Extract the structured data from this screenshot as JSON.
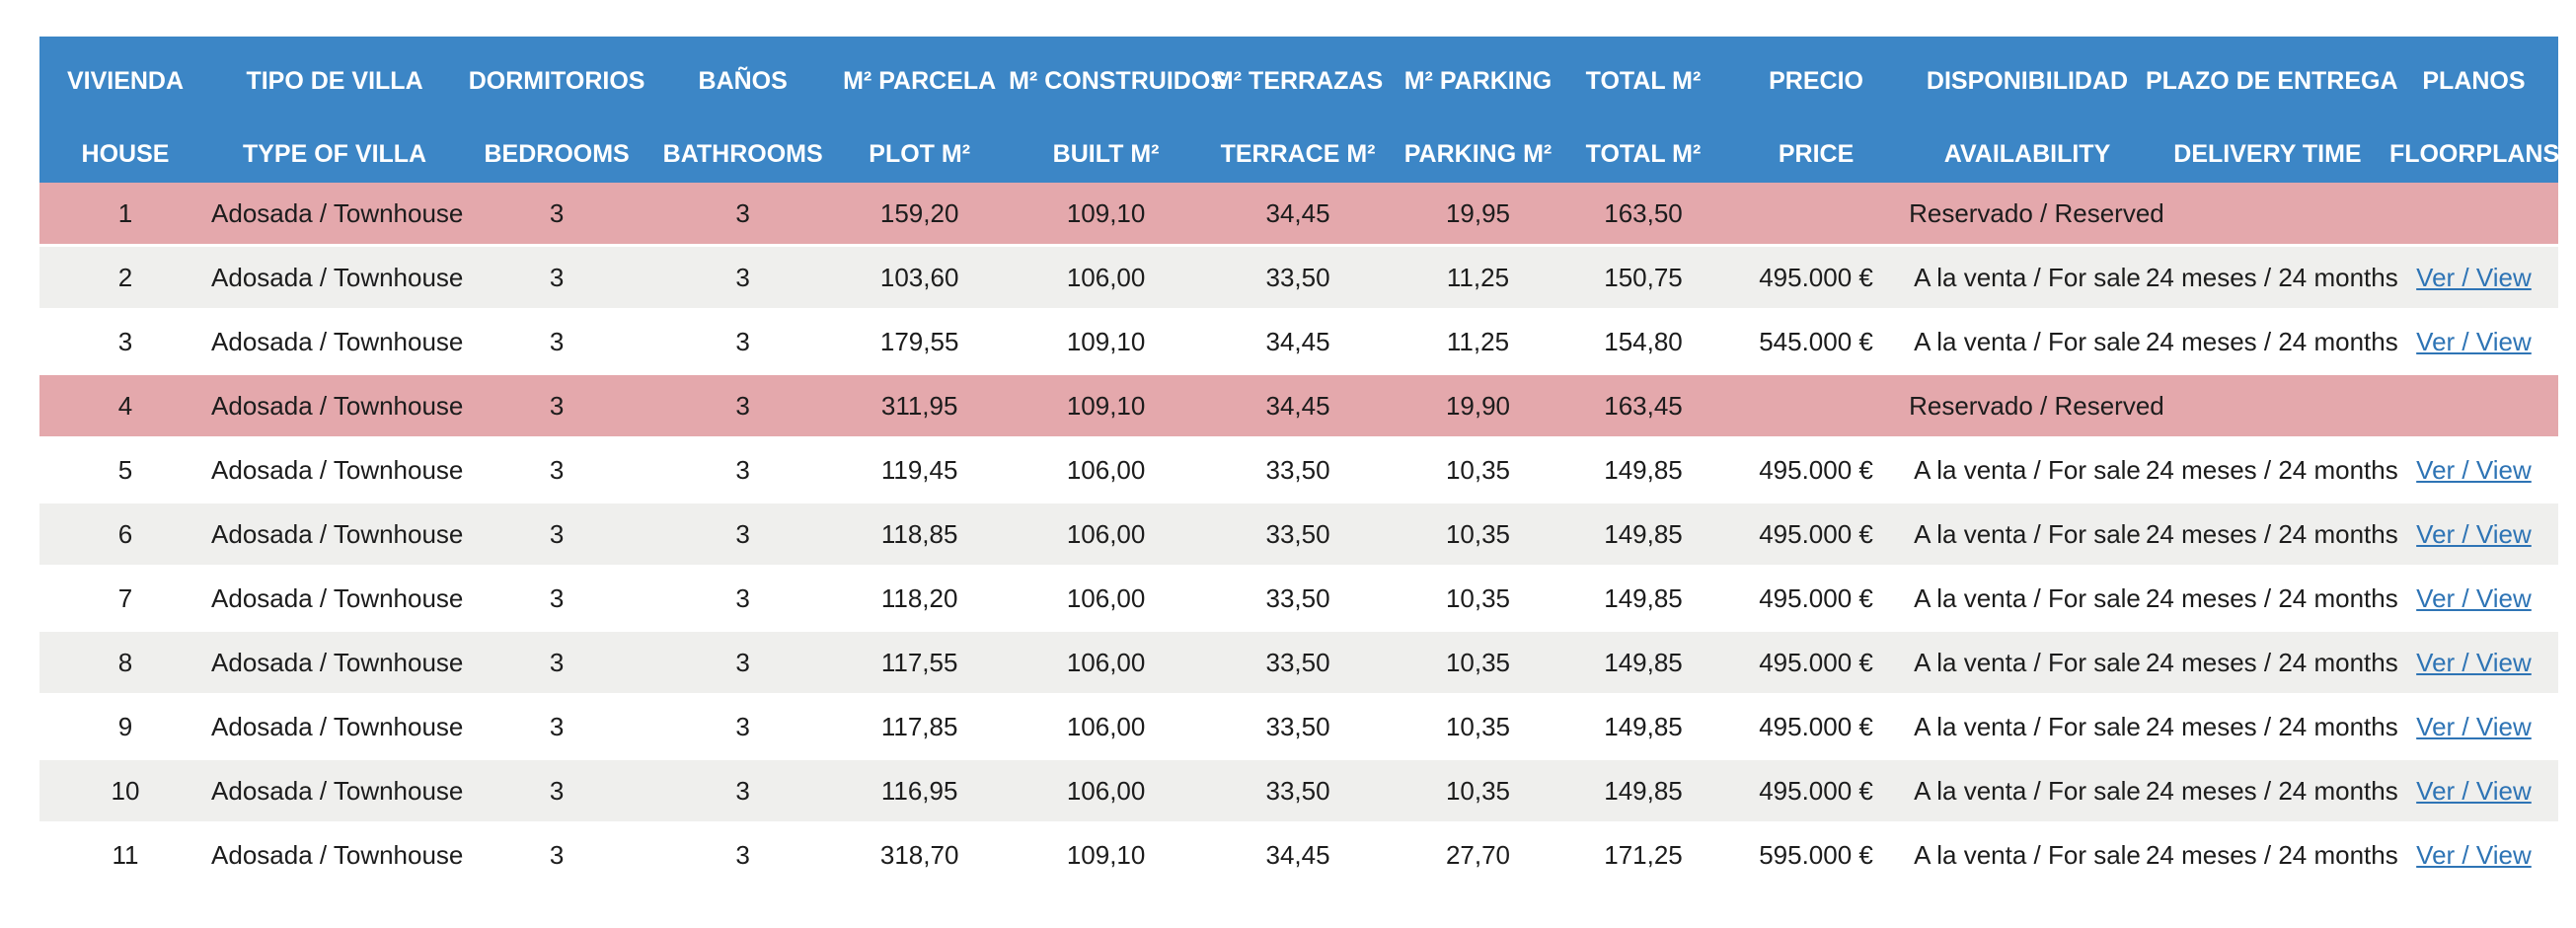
{
  "colors": {
    "header_bg": "#3C86C6",
    "header_text": "#FFFFFF",
    "reserved_bg": "#E4A8AC",
    "stripe_bg": "#EFEFED",
    "row_bg": "#FFFFFF",
    "body_text": "#1C1C1C",
    "link_color": "#2E74B5"
  },
  "table": {
    "header_es": [
      "VIVIENDA",
      "TIPO DE VILLA",
      "DORMITORIOS",
      "BAÑOS",
      "M² PARCELA",
      "M² CONSTRUIDOS",
      "M² TERRAZAS",
      "M² PARKING",
      "TOTAL M²",
      "PRECIO",
      "DISPONIBILIDAD",
      "PLAZO DE ENTREGA",
      "PLANOS"
    ],
    "header_en": [
      "HOUSE",
      "TYPE OF VILLA",
      "BEDROOMS",
      "BATHROOMS",
      "PLOT M²",
      "BUILT M²",
      "TERRACE M²",
      "PARKING M²",
      "TOTAL M²",
      "PRICE",
      "AVAILABILITY",
      "DELIVERY TIME",
      "FLOORPLANS"
    ],
    "rows": [
      {
        "house": "1",
        "type": "Adosada / Townhouse",
        "bedrooms": "3",
        "bathrooms": "3",
        "plot": "159,20",
        "built": "109,10",
        "terrace": "34,45",
        "parking": "19,95",
        "total": "163,50",
        "price": "",
        "availability": "Reservado / Reserved",
        "delivery": "",
        "floorplans": "",
        "shade": "reserved"
      },
      {
        "house": "2",
        "type": "Adosada / Townhouse",
        "bedrooms": "3",
        "bathrooms": "3",
        "plot": "103,60",
        "built": "106,00",
        "terrace": "33,50",
        "parking": "11,25",
        "total": "150,75",
        "price": "495.000 €",
        "availability": "A la venta / For sale",
        "delivery": "24 meses / 24 months",
        "floorplans": "Ver / View",
        "shade": "gray"
      },
      {
        "house": "3",
        "type": "Adosada / Townhouse",
        "bedrooms": "3",
        "bathrooms": "3",
        "plot": "179,55",
        "built": "109,10",
        "terrace": "34,45",
        "parking": "11,25",
        "total": "154,80",
        "price": "545.000 €",
        "availability": "A la venta / For sale",
        "delivery": "24 meses / 24 months",
        "floorplans": "Ver / View",
        "shade": "white"
      },
      {
        "house": "4",
        "type": "Adosada / Townhouse",
        "bedrooms": "3",
        "bathrooms": "3",
        "plot": "311,95",
        "built": "109,10",
        "terrace": "34,45",
        "parking": "19,90",
        "total": "163,45",
        "price": "",
        "availability": "Reservado / Reserved",
        "delivery": "",
        "floorplans": "",
        "shade": "reserved"
      },
      {
        "house": "5",
        "type": "Adosada / Townhouse",
        "bedrooms": "3",
        "bathrooms": "3",
        "plot": "119,45",
        "built": "106,00",
        "terrace": "33,50",
        "parking": "10,35",
        "total": "149,85",
        "price": "495.000 €",
        "availability": "A la venta / For sale",
        "delivery": "24 meses / 24 months",
        "floorplans": "Ver / View",
        "shade": "white"
      },
      {
        "house": "6",
        "type": "Adosada / Townhouse",
        "bedrooms": "3",
        "bathrooms": "3",
        "plot": "118,85",
        "built": "106,00",
        "terrace": "33,50",
        "parking": "10,35",
        "total": "149,85",
        "price": "495.000 €",
        "availability": "A la venta / For sale",
        "delivery": "24 meses / 24 months",
        "floorplans": "Ver / View",
        "shade": "gray"
      },
      {
        "house": "7",
        "type": "Adosada / Townhouse",
        "bedrooms": "3",
        "bathrooms": "3",
        "plot": "118,20",
        "built": "106,00",
        "terrace": "33,50",
        "parking": "10,35",
        "total": "149,85",
        "price": "495.000 €",
        "availability": "A la venta / For sale",
        "delivery": "24 meses / 24 months",
        "floorplans": "Ver / View",
        "shade": "white"
      },
      {
        "house": "8",
        "type": "Adosada / Townhouse",
        "bedrooms": "3",
        "bathrooms": "3",
        "plot": "117,55",
        "built": "106,00",
        "terrace": "33,50",
        "parking": "10,35",
        "total": "149,85",
        "price": "495.000 €",
        "availability": "A la venta / For sale",
        "delivery": "24 meses / 24 months",
        "floorplans": "Ver / View",
        "shade": "gray"
      },
      {
        "house": "9",
        "type": "Adosada / Townhouse",
        "bedrooms": "3",
        "bathrooms": "3",
        "plot": "117,85",
        "built": "106,00",
        "terrace": "33,50",
        "parking": "10,35",
        "total": "149,85",
        "price": "495.000 €",
        "availability": "A la venta / For sale",
        "delivery": "24 meses / 24 months",
        "floorplans": "Ver / View",
        "shade": "white"
      },
      {
        "house": "10",
        "type": "Adosada / Townhouse",
        "bedrooms": "3",
        "bathrooms": "3",
        "plot": "116,95",
        "built": "106,00",
        "terrace": "33,50",
        "parking": "10,35",
        "total": "149,85",
        "price": "495.000 €",
        "availability": "A la venta / For sale",
        "delivery": "24 meses / 24 months",
        "floorplans": "Ver / View",
        "shade": "gray"
      },
      {
        "house": "11",
        "type": "Adosada / Townhouse",
        "bedrooms": "3",
        "bathrooms": "3",
        "plot": "318,70",
        "built": "109,10",
        "terrace": "34,45",
        "parking": "27,70",
        "total": "171,25",
        "price": "595.000 €",
        "availability": "A la venta / For sale",
        "delivery": "24 meses / 24 months",
        "floorplans": "Ver / View",
        "shade": "white"
      }
    ]
  }
}
